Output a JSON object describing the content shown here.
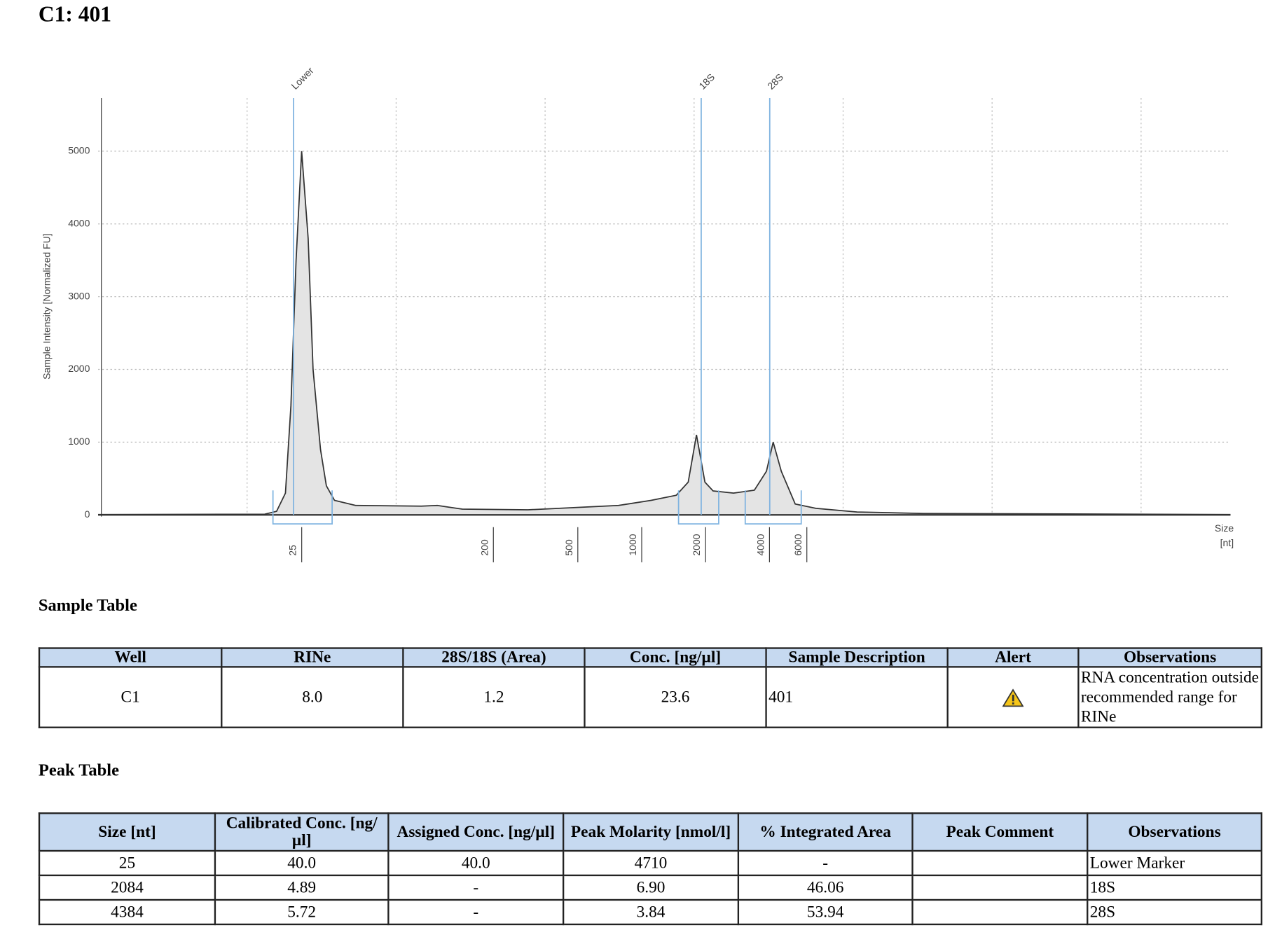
{
  "title": "C1: 401",
  "chart_data": {
    "type": "area",
    "ylabel": "Sample Intensity [Normalized FU]",
    "xlabel": [
      "Size",
      "[nt]"
    ],
    "xscale": "log",
    "xlim": [
      3,
      650000
    ],
    "ylim": [
      0,
      5730
    ],
    "xticks": [
      25,
      200,
      500,
      1000,
      2000,
      4000,
      6000
    ],
    "yticks": [
      0,
      1000,
      2000,
      3000,
      4000,
      5000
    ],
    "grid": true,
    "color": "#e4e4e4",
    "line_color": "#333333",
    "marker_color": "#7fb3e0",
    "x": [
      3,
      18.3,
      20.8,
      22.9,
      24.3,
      25.7,
      27.3,
      29.3,
      30.9,
      33.5,
      35.7,
      39,
      49,
      100,
      119,
      156,
      318,
      850,
      1210,
      1590,
      1810,
      1980,
      2170,
      2370,
      2960,
      3710,
      4230,
      4550,
      4970,
      5780,
      7230,
      11300,
      23100,
      650000
    ],
    "values": [
      5,
      10,
      50,
      300,
      1500,
      3500,
      5000,
      3800,
      2000,
      900,
      400,
      200,
      130,
      120,
      130,
      80,
      70,
      130,
      200,
      270,
      450,
      1100,
      450,
      330,
      300,
      340,
      600,
      1000,
      600,
      150,
      90,
      40,
      20,
      5
    ],
    "peaks": [
      {
        "label": "Lower",
        "x": 25
      },
      {
        "label": "18S",
        "x": 2084
      },
      {
        "label": "28S",
        "x": 4384
      }
    ],
    "peak_ranges": [
      [
        20,
        38
      ],
      [
        1630,
        2520
      ],
      [
        3360,
        6170
      ]
    ]
  },
  "sample_table": {
    "title": "Sample Table",
    "columns": [
      {
        "key": "well",
        "label": "Well"
      },
      {
        "key": "rine",
        "label": "RINe"
      },
      {
        "key": "ratio",
        "label": "28S/18S (Area)"
      },
      {
        "key": "conc",
        "label": "Conc. [ng/µl]"
      },
      {
        "key": "desc",
        "label": "Sample Description"
      },
      {
        "key": "alert",
        "label": "Alert"
      },
      {
        "key": "obs",
        "label": "Observations"
      }
    ],
    "rows": [
      {
        "well": "C1",
        "rine": "8.0",
        "ratio": "1.2",
        "conc": "23.6",
        "desc": "401",
        "obs": "RNA concentration outside recommended range for RINe"
      }
    ]
  },
  "peak_table": {
    "title": "Peak Table",
    "columns": [
      {
        "key": "size",
        "label": "Size [nt]"
      },
      {
        "key": "cal",
        "label": "Calibrated Conc. [ng/µl]"
      },
      {
        "key": "asg",
        "label": "Assigned Conc. [ng/µl]"
      },
      {
        "key": "mol",
        "label": "Peak Molarity [nmol/l]"
      },
      {
        "key": "area",
        "label": "% Integrated Area"
      },
      {
        "key": "comment",
        "label": "Peak Comment"
      },
      {
        "key": "obs",
        "label": "Observations"
      }
    ],
    "rows": [
      {
        "size": "25",
        "cal": "40.0",
        "asg": "40.0",
        "mol": "4710",
        "area": "-",
        "obs": "Lower Marker"
      },
      {
        "size": "2084",
        "cal": "4.89",
        "asg": "-",
        "mol": "6.90",
        "area": "46.06",
        "obs": "18S"
      },
      {
        "size": "4384",
        "cal": "5.72",
        "asg": "-",
        "mol": "3.84",
        "area": "53.94",
        "obs": "28S"
      }
    ]
  }
}
